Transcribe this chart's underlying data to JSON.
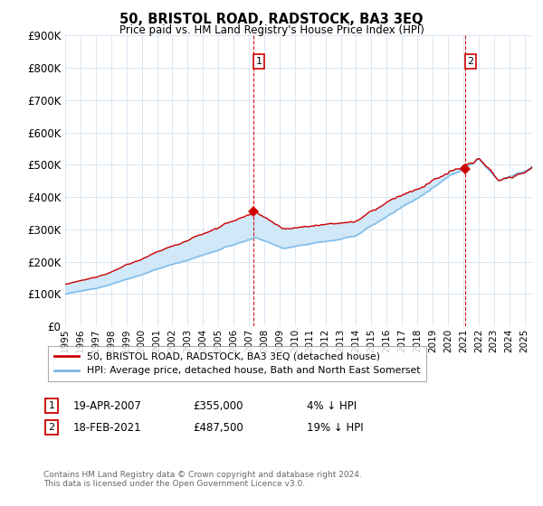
{
  "title": "50, BRISTOL ROAD, RADSTOCK, BA3 3EQ",
  "subtitle": "Price paid vs. HM Land Registry's House Price Index (HPI)",
  "ylabel_ticks": [
    "£0",
    "£100K",
    "£200K",
    "£300K",
    "£400K",
    "£500K",
    "£600K",
    "£700K",
    "£800K",
    "£900K"
  ],
  "ylim": [
    0,
    900000
  ],
  "xlim_start": 1995.0,
  "xlim_end": 2025.5,
  "hpi_color": "#7ab8e8",
  "price_color": "#cc0000",
  "fill_color": "#d0e8f8",
  "marker1_date": 2007.3,
  "marker1_price": 355000,
  "marker2_date": 2021.12,
  "marker2_price": 487500,
  "legend_line1": "50, BRISTOL ROAD, RADSTOCK, BA3 3EQ (detached house)",
  "legend_line2": "HPI: Average price, detached house, Bath and North East Somerset",
  "annotation1_label": "1",
  "annotation1_date": "19-APR-2007",
  "annotation1_price": "£355,000",
  "annotation1_hpi": "4% ↓ HPI",
  "annotation2_label": "2",
  "annotation2_date": "18-FEB-2021",
  "annotation2_price": "£487,500",
  "annotation2_hpi": "19% ↓ HPI",
  "footer": "Contains HM Land Registry data © Crown copyright and database right 2024.\nThis data is licensed under the Open Government Licence v3.0.",
  "background_color": "#ffffff",
  "grid_color": "#ccddee"
}
